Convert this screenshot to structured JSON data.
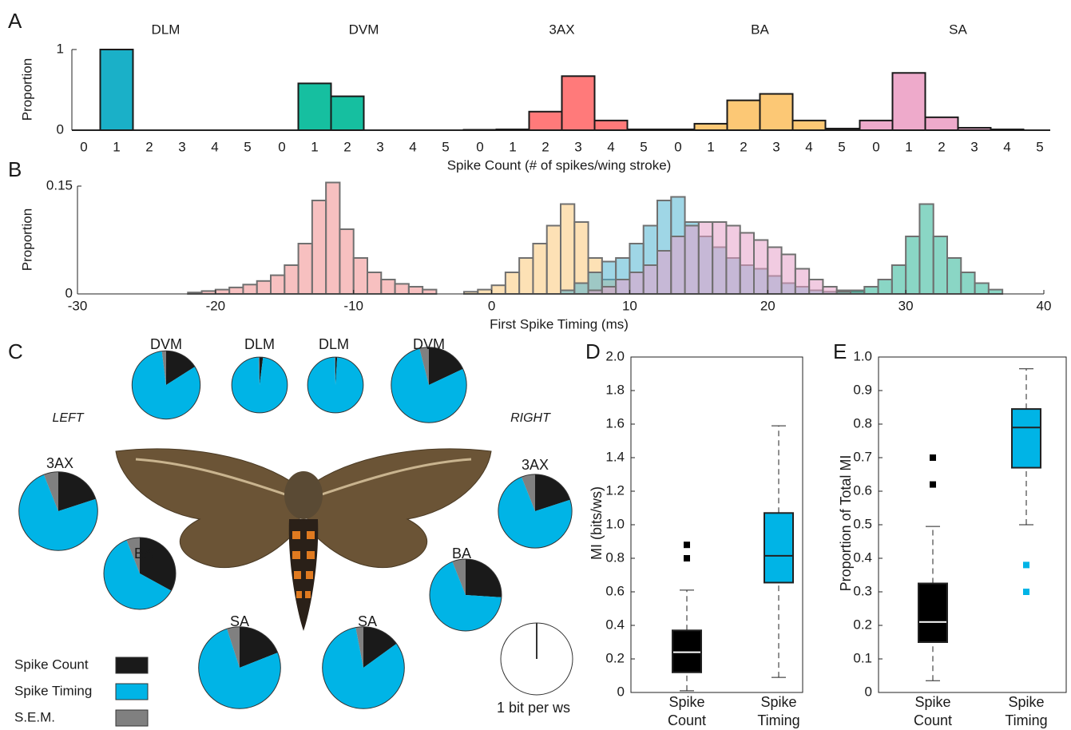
{
  "chart_data": [
    {
      "panel": "A",
      "type": "bar",
      "ylabel": "Proportion",
      "xlabel": "Spike Count (# of spikes/wing stroke)",
      "ylim": [
        0,
        1
      ],
      "yticks": [
        0,
        1
      ],
      "groups": [
        {
          "title": "DLM",
          "color": "#1ab0c8",
          "categories": [
            0,
            1,
            2,
            3,
            4,
            5
          ],
          "values": [
            0,
            1,
            0,
            0,
            0,
            0
          ]
        },
        {
          "title": "DVM",
          "color": "#16bfa0",
          "categories": [
            0,
            1,
            2,
            3,
            4,
            5
          ],
          "values": [
            0,
            0.58,
            0.42,
            0,
            0,
            0
          ]
        },
        {
          "title": "3AX",
          "color": "#ff7a7a",
          "categories": [
            0,
            1,
            2,
            3,
            4,
            5
          ],
          "values": [
            0.005,
            0.01,
            0.23,
            0.67,
            0.12,
            0.01
          ]
        },
        {
          "title": "BA",
          "color": "#fcc875",
          "categories": [
            0,
            1,
            2,
            3,
            4,
            5
          ],
          "values": [
            0.01,
            0.08,
            0.37,
            0.45,
            0.12,
            0.02
          ]
        },
        {
          "title": "SA",
          "color": "#eeaacb",
          "categories": [
            0,
            1,
            2,
            3,
            4,
            5
          ],
          "values": [
            0.12,
            0.71,
            0.16,
            0.03,
            0.01,
            0
          ]
        }
      ]
    },
    {
      "panel": "B",
      "type": "histogram",
      "ylabel": "Proportion",
      "xlabel": "First Spike Timing (ms)",
      "xlim": [
        -30,
        40
      ],
      "xticks": [
        -30,
        -20,
        -10,
        0,
        10,
        20,
        30,
        40
      ],
      "ylim": [
        0,
        0.15
      ],
      "yticks": [
        0,
        0.15
      ],
      "series": [
        {
          "color": "#f08c8c",
          "bins": [
            -22,
            -21,
            -20,
            -19,
            -18,
            -17,
            -16,
            -15,
            -14,
            -13,
            -12,
            -11,
            -10,
            -9,
            -8,
            -7,
            -6,
            -5,
            -4
          ],
          "values": [
            0.002,
            0.004,
            0.006,
            0.009,
            0.013,
            0.018,
            0.026,
            0.04,
            0.07,
            0.13,
            0.155,
            0.09,
            0.05,
            0.03,
            0.02,
            0.014,
            0.01,
            0.006
          ]
        },
        {
          "color": "#fcc878",
          "bins": [
            -2,
            -1,
            0,
            1,
            2,
            3,
            4,
            5,
            6,
            7,
            8,
            9
          ],
          "values": [
            0.003,
            0.006,
            0.012,
            0.03,
            0.05,
            0.07,
            0.095,
            0.125,
            0.1,
            0.05,
            0.02
          ]
        },
        {
          "color": "#50b4d2",
          "bins": [
            5,
            6,
            7,
            8,
            9,
            10,
            11,
            12,
            13,
            14,
            15,
            16,
            17,
            18,
            19,
            20,
            21,
            22,
            23,
            24,
            25
          ],
          "values": [
            0.005,
            0.015,
            0.03,
            0.045,
            0.05,
            0.07,
            0.095,
            0.13,
            0.135,
            0.1,
            0.08,
            0.065,
            0.05,
            0.04,
            0.035,
            0.025,
            0.015,
            0.01,
            0.005,
            0.003
          ]
        },
        {
          "color": "#e6a0c8",
          "bins": [
            7,
            8,
            9,
            10,
            11,
            12,
            13,
            14,
            15,
            16,
            17,
            18,
            19,
            20,
            21,
            22,
            23,
            24,
            25,
            26,
            27
          ],
          "values": [
            0.005,
            0.01,
            0.02,
            0.03,
            0.04,
            0.06,
            0.08,
            0.095,
            0.1,
            0.1,
            0.095,
            0.085,
            0.075,
            0.065,
            0.055,
            0.035,
            0.02,
            0.01,
            0.005,
            0.003
          ]
        },
        {
          "color": "#2ab496",
          "bins": [
            25,
            26,
            27,
            28,
            29,
            30,
            31,
            32,
            33,
            34,
            35,
            36,
            37
          ],
          "values": [
            0.003,
            0.005,
            0.01,
            0.02,
            0.04,
            0.08,
            0.125,
            0.08,
            0.05,
            0.03,
            0.015,
            0.006
          ]
        }
      ]
    },
    {
      "panel": "C",
      "type": "pie",
      "side_labels": [
        "LEFT",
        "RIGHT"
      ],
      "series": [
        {
          "name": "Spike Count",
          "color": "#1a1a1a"
        },
        {
          "name": "Spike Timing",
          "color": "#00b4e6"
        },
        {
          "name": "S.E.M.",
          "color": "#808080"
        }
      ],
      "pies": [
        {
          "label": "DVM",
          "total": 0.9,
          "values": [
            16,
            82,
            2
          ]
        },
        {
          "label": "DLM",
          "total": 0.6,
          "values": [
            2,
            97.5,
            0.5
          ]
        },
        {
          "label": "DLM",
          "total": 0.6,
          "values": [
            1,
            98.7,
            0.3
          ]
        },
        {
          "label": "DVM",
          "total": 1.1,
          "values": [
            18,
            78,
            4
          ]
        },
        {
          "label": "3AX",
          "total": 1.2,
          "values": [
            20,
            74,
            6
          ]
        },
        {
          "label": "BA",
          "total": 1.0,
          "values": [
            33,
            61,
            6
          ]
        },
        {
          "label": "SA",
          "total": 1.3,
          "values": [
            19,
            76,
            5
          ]
        },
        {
          "label": "SA",
          "total": 1.3,
          "values": [
            15,
            82,
            3
          ]
        },
        {
          "label": "BA",
          "total": 1.0,
          "values": [
            26,
            68,
            6
          ]
        },
        {
          "label": "3AX",
          "total": 1.05,
          "values": [
            20,
            74,
            6
          ]
        }
      ],
      "reference": {
        "label": "1 bit per ws",
        "total": 1
      }
    },
    {
      "panel": "D",
      "type": "box",
      "ylabel": "MI (bits/ws)",
      "ylim": [
        0,
        2
      ],
      "yticks": [
        0,
        0.2,
        0.4,
        0.6,
        0.8,
        {
          "value": 1,
          "label": "1.0"
        },
        1.2,
        1.4,
        1.6,
        1.8,
        {
          "value": 2,
          "label": "2.0"
        }
      ],
      "categories": [
        "Spike Count",
        "Spike Timing"
      ],
      "colors": [
        "#000000",
        "#00b4e6"
      ],
      "boxes": [
        {
          "whisker_low": 0.01,
          "q1": 0.12,
          "median": 0.24,
          "q3": 0.37,
          "whisker_high": 0.61,
          "outliers": [
            0.8,
            0.88
          ]
        },
        {
          "whisker_low": 0.09,
          "q1": 0.655,
          "median": 0.815,
          "q3": 1.07,
          "whisker_high": 1.59,
          "outliers": []
        }
      ]
    },
    {
      "panel": "E",
      "type": "box",
      "ylabel": "Proportion of Total MI",
      "ylim": [
        0,
        1
      ],
      "yticks": [
        0,
        0.1,
        0.2,
        0.3,
        0.4,
        0.5,
        0.6,
        0.7,
        0.8,
        0.9,
        {
          "value": 1,
          "label": "1.0"
        }
      ],
      "categories": [
        "Spike Count",
        "Spike Timing"
      ],
      "colors": [
        "#000000",
        "#00b4e6"
      ],
      "boxes": [
        {
          "whisker_low": 0.035,
          "q1": 0.15,
          "median": 0.21,
          "q3": 0.325,
          "whisker_high": 0.495,
          "outliers": [
            0.62,
            0.7
          ]
        },
        {
          "whisker_low": 0.5,
          "q1": 0.67,
          "median": 0.79,
          "q3": 0.845,
          "whisker_high": 0.965,
          "outliers": [
            0.3,
            0.38
          ]
        }
      ]
    }
  ]
}
